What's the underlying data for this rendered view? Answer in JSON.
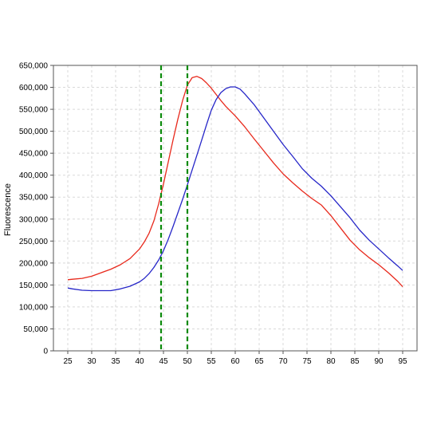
{
  "chart_data": {
    "type": "line",
    "title": "",
    "xlabel": "",
    "ylabel": "Fluorescence",
    "xlim": [
      22,
      98
    ],
    "ylim": [
      0,
      650000
    ],
    "x_ticks": [
      "25",
      "30",
      "35",
      "40",
      "45",
      "50",
      "55",
      "60",
      "65",
      "70",
      "75",
      "80",
      "85",
      "90",
      "95"
    ],
    "y_ticks": [
      "0",
      "50,000",
      "100,000",
      "150,000",
      "200,000",
      "250,000",
      "300,000",
      "350,000",
      "400,000",
      "450,000",
      "500,000",
      "550,000",
      "600,000",
      "650,000"
    ],
    "grid": true,
    "legend": "none",
    "series": [
      {
        "color": "#e8291c",
        "points": [
          [
            25,
            162000
          ],
          [
            26,
            163000
          ],
          [
            28,
            165000
          ],
          [
            30,
            170000
          ],
          [
            32,
            178000
          ],
          [
            34,
            186000
          ],
          [
            36,
            196000
          ],
          [
            38,
            210000
          ],
          [
            40,
            232000
          ],
          [
            41,
            248000
          ],
          [
            42,
            268000
          ],
          [
            43,
            296000
          ],
          [
            44,
            335000
          ],
          [
            45,
            380000
          ],
          [
            46,
            430000
          ],
          [
            47,
            480000
          ],
          [
            48,
            527000
          ],
          [
            49,
            570000
          ],
          [
            50,
            605000
          ],
          [
            51,
            622000
          ],
          [
            52,
            625000
          ],
          [
            53,
            620000
          ],
          [
            54,
            610000
          ],
          [
            55,
            598000
          ],
          [
            56,
            584000
          ],
          [
            57,
            570000
          ],
          [
            58,
            557000
          ],
          [
            60,
            535000
          ],
          [
            62,
            510000
          ],
          [
            64,
            482000
          ],
          [
            66,
            455000
          ],
          [
            68,
            428000
          ],
          [
            70,
            403000
          ],
          [
            72,
            383000
          ],
          [
            74,
            364000
          ],
          [
            76,
            347000
          ],
          [
            78,
            332000
          ],
          [
            80,
            308000
          ],
          [
            82,
            280000
          ],
          [
            84,
            252000
          ],
          [
            86,
            230000
          ],
          [
            88,
            212000
          ],
          [
            90,
            196000
          ],
          [
            92,
            178000
          ],
          [
            94,
            158000
          ],
          [
            95,
            146000
          ]
        ]
      },
      {
        "color": "#2626c8",
        "points": [
          [
            25,
            143000
          ],
          [
            26,
            141000
          ],
          [
            28,
            138000
          ],
          [
            30,
            137000
          ],
          [
            32,
            137000
          ],
          [
            34,
            137000
          ],
          [
            36,
            141000
          ],
          [
            38,
            147000
          ],
          [
            40,
            157000
          ],
          [
            41,
            165000
          ],
          [
            42,
            176000
          ],
          [
            43,
            190000
          ],
          [
            44,
            207000
          ],
          [
            45,
            228000
          ],
          [
            46,
            254000
          ],
          [
            47,
            283000
          ],
          [
            48,
            314000
          ],
          [
            49,
            345000
          ],
          [
            50,
            378000
          ],
          [
            51,
            412000
          ],
          [
            52,
            446000
          ],
          [
            53,
            480000
          ],
          [
            54,
            515000
          ],
          [
            55,
            548000
          ],
          [
            56,
            572000
          ],
          [
            57,
            588000
          ],
          [
            58,
            597000
          ],
          [
            59,
            601000
          ],
          [
            60,
            601000
          ],
          [
            61,
            596000
          ],
          [
            62,
            585000
          ],
          [
            64,
            560000
          ],
          [
            66,
            530000
          ],
          [
            68,
            500000
          ],
          [
            70,
            470000
          ],
          [
            72,
            443000
          ],
          [
            74,
            415000
          ],
          [
            76,
            393000
          ],
          [
            78,
            375000
          ],
          [
            80,
            353000
          ],
          [
            82,
            328000
          ],
          [
            84,
            303000
          ],
          [
            86,
            275000
          ],
          [
            88,
            252000
          ],
          [
            90,
            232000
          ],
          [
            92,
            212000
          ],
          [
            94,
            193000
          ],
          [
            95,
            183000
          ]
        ]
      }
    ],
    "reference_lines": [
      {
        "x": 44.5,
        "color": "#0a8a0a",
        "style": "dashed"
      },
      {
        "x": 50,
        "color": "#0a8a0a",
        "style": "dashed"
      }
    ]
  }
}
